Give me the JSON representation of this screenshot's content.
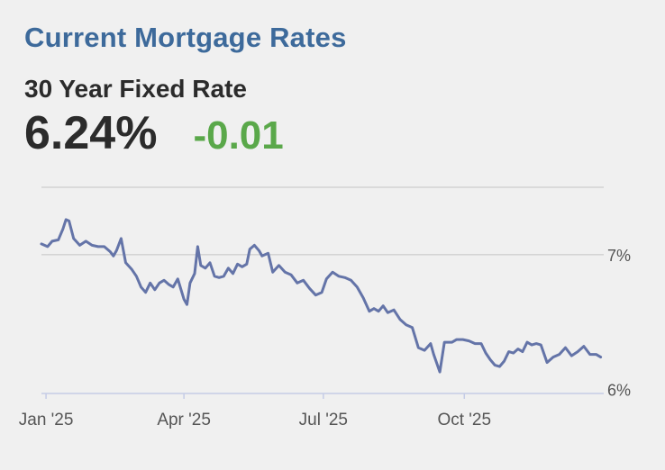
{
  "header": {
    "title": "Current Mortgage Rates",
    "subtitle": "30 Year Fixed Rate",
    "rate": "6.24%",
    "change": "-0.01"
  },
  "colors": {
    "title": "#3d6a9b",
    "line": "#6474a8",
    "positive_change": "#5aa84a",
    "grid": "#c4c4c4",
    "axis": "#c5cce6"
  },
  "chart_data": {
    "type": "line",
    "title": "",
    "xlabel": "",
    "ylabel": "",
    "ylim": [
      5.97,
      7.5
    ],
    "yticks": [
      {
        "value": 7,
        "label": "7%"
      },
      {
        "value": 6,
        "label": "6%"
      }
    ],
    "xticks": [
      {
        "date": "2025-01-01",
        "label": "Jan '25"
      },
      {
        "date": "2025-04-01",
        "label": "Apr '25"
      },
      {
        "date": "2025-07-01",
        "label": "Jul '25"
      },
      {
        "date": "2025-10-01",
        "label": "Oct '25"
      }
    ],
    "xlim": [
      "2024-12-29",
      "2025-12-31"
    ],
    "grid": true,
    "series": [
      {
        "x": [
          "2024-12-29",
          "2025-01-02",
          "2025-01-05",
          "2025-01-09",
          "2025-01-12",
          "2025-01-14",
          "2025-01-16",
          "2025-01-19",
          "2025-01-23",
          "2025-01-27",
          "2025-01-31",
          "2025-02-04",
          "2025-02-08",
          "2025-02-12",
          "2025-02-14",
          "2025-02-16",
          "2025-02-19",
          "2025-02-22",
          "2025-02-26",
          "2025-03-01",
          "2025-03-04",
          "2025-03-07",
          "2025-03-10",
          "2025-03-13",
          "2025-03-16",
          "2025-03-19",
          "2025-03-22",
          "2025-03-25",
          "2025-03-28",
          "2025-04-01",
          "2025-04-03",
          "2025-04-05",
          "2025-04-08",
          "2025-04-10",
          "2025-04-12",
          "2025-04-15",
          "2025-04-18",
          "2025-04-21",
          "2025-04-24",
          "2025-04-27",
          "2025-04-30",
          "2025-05-03",
          "2025-05-06",
          "2025-05-09",
          "2025-05-12",
          "2025-05-14",
          "2025-05-17",
          "2025-05-20",
          "2025-05-22",
          "2025-05-26",
          "2025-05-29",
          "2025-06-02",
          "2025-06-06",
          "2025-06-10",
          "2025-06-14",
          "2025-06-18",
          "2025-06-22",
          "2025-06-26",
          "2025-06-30",
          "2025-07-03",
          "2025-07-07",
          "2025-07-11",
          "2025-07-15",
          "2025-07-19",
          "2025-07-23",
          "2025-07-27",
          "2025-07-31",
          "2025-08-03",
          "2025-08-06",
          "2025-08-09",
          "2025-08-12",
          "2025-08-16",
          "2025-08-20",
          "2025-08-24",
          "2025-08-28",
          "2025-09-01",
          "2025-09-05",
          "2025-09-09",
          "2025-09-11",
          "2025-09-15",
          "2025-09-18",
          "2025-09-20",
          "2025-09-23",
          "2025-09-26",
          "2025-09-30",
          "2025-10-04",
          "2025-10-08",
          "2025-10-12",
          "2025-10-15",
          "2025-10-18",
          "2025-10-21",
          "2025-10-24",
          "2025-10-27",
          "2025-10-30",
          "2025-11-02",
          "2025-11-05",
          "2025-11-08",
          "2025-11-11",
          "2025-11-14",
          "2025-11-17",
          "2025-11-20",
          "2025-11-24",
          "2025-11-28",
          "2025-12-02",
          "2025-12-06",
          "2025-12-10",
          "2025-12-14",
          "2025-12-18",
          "2025-12-22",
          "2025-12-26",
          "2025-12-29"
        ],
        "y": [
          7.08,
          7.06,
          7.1,
          7.11,
          7.19,
          7.26,
          7.25,
          7.12,
          7.07,
          7.1,
          7.07,
          7.06,
          7.06,
          7.02,
          6.99,
          7.03,
          7.12,
          6.94,
          6.89,
          6.84,
          6.76,
          6.72,
          6.79,
          6.74,
          6.79,
          6.81,
          6.78,
          6.76,
          6.82,
          6.67,
          6.63,
          6.79,
          6.86,
          7.06,
          6.92,
          6.9,
          6.94,
          6.84,
          6.83,
          6.84,
          6.9,
          6.86,
          6.93,
          6.91,
          6.93,
          7.04,
          7.07,
          7.03,
          6.99,
          7.01,
          6.87,
          6.92,
          6.87,
          6.85,
          6.79,
          6.81,
          6.75,
          6.7,
          6.72,
          6.82,
          6.87,
          6.84,
          6.83,
          6.81,
          6.76,
          6.68,
          6.58,
          6.6,
          6.58,
          6.62,
          6.57,
          6.59,
          6.52,
          6.48,
          6.46,
          6.31,
          6.29,
          6.34,
          6.26,
          6.13,
          6.35,
          6.35,
          6.35,
          6.37,
          6.37,
          6.36,
          6.34,
          6.34,
          6.27,
          6.22,
          6.18,
          6.17,
          6.21,
          6.28,
          6.27,
          6.3,
          6.28,
          6.35,
          6.33,
          6.34,
          6.33,
          6.2,
          6.24,
          6.26,
          6.31,
          6.25,
          6.28,
          6.32,
          6.26,
          6.26,
          6.24
        ]
      }
    ]
  }
}
